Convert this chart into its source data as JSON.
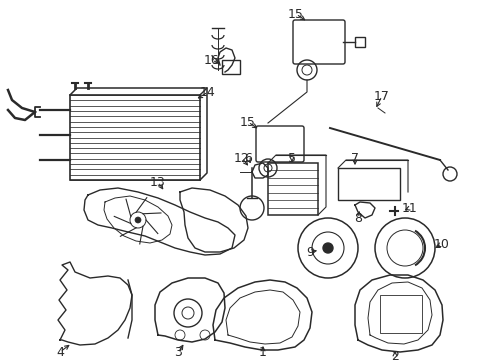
{
  "background_color": "#ffffff",
  "line_color": "#2a2a2a",
  "lw": 1.0,
  "fig_w": 4.89,
  "fig_h": 3.6,
  "dpi": 100
}
